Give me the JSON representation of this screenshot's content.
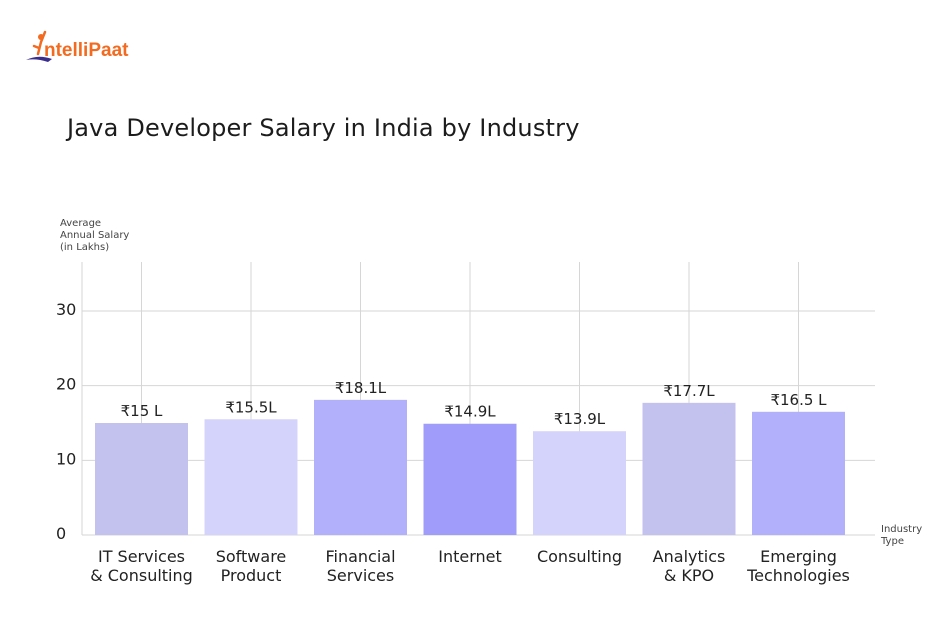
{
  "logo": {
    "text": "IntelliPaat",
    "brand_color": "#f26b21",
    "accent_color": "#3a2e8c"
  },
  "chart_data": {
    "type": "bar",
    "title": "Java Developer Salary in India by Industry",
    "ylabel": [
      "Average",
      "Annual Salary",
      "(in Lakhs)"
    ],
    "xlabel": [
      "Industry",
      "Type"
    ],
    "ylim": [
      0,
      30
    ],
    "yticks": [
      0,
      10,
      20,
      30
    ],
    "grid": true,
    "categories": [
      [
        "IT Services",
        "& Consulting"
      ],
      [
        "Software",
        "Product"
      ],
      [
        "Financial",
        "Services"
      ],
      [
        "Internet"
      ],
      [
        "Consulting"
      ],
      [
        "Analytics",
        "& KPO"
      ],
      [
        "Emerging",
        "Technologies"
      ]
    ],
    "values": [
      15,
      15.5,
      18.1,
      14.9,
      13.9,
      17.7,
      16.5
    ],
    "data_labels": [
      "₹15 L",
      "₹15.5L",
      "₹18.1L",
      "₹14.9L",
      "₹13.9L",
      "₹17.7L",
      "₹16.5 L"
    ],
    "colors": [
      "#c3c2ee",
      "#d4d3fc",
      "#b2b0fa",
      "#a09cf9",
      "#d4d3fc",
      "#c3c2ee",
      "#b2b0fa"
    ]
  }
}
